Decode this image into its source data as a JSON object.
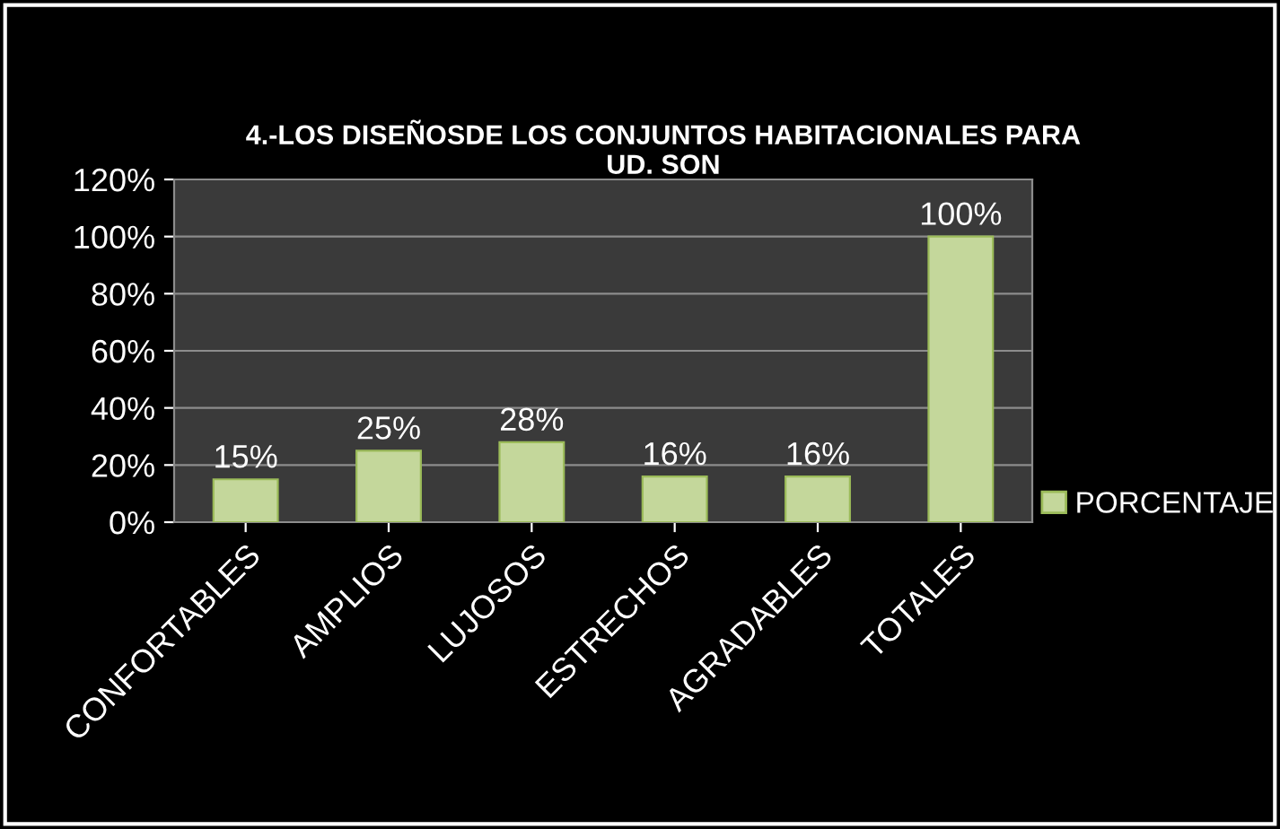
{
  "chart_data": {
    "type": "bar",
    "title": "4.-LOS DISEÑOSDE LOS CONJUNTOS HABITACIONALES PARA\nUD. SON",
    "categories": [
      "CONFORTABLES",
      "AMPLIOS",
      "LUJOSOS",
      "ESTRECHOS",
      "AGRADABLES",
      "TOTALES"
    ],
    "series": [
      {
        "name": "PORCENTAJE",
        "color": "#c4d79b",
        "values": [
          15,
          25,
          28,
          16,
          16,
          100
        ],
        "value_labels": [
          "15%",
          "25%",
          "28%",
          "16%",
          "16%",
          "100%"
        ]
      }
    ],
    "ylim": [
      0,
      120
    ],
    "yticks": [
      {
        "value": 0,
        "label": "0%"
      },
      {
        "value": 20,
        "label": "20%"
      },
      {
        "value": 40,
        "label": "40%"
      },
      {
        "value": 60,
        "label": "60%"
      },
      {
        "value": 80,
        "label": "80%"
      },
      {
        "value": 100,
        "label": "100%"
      },
      {
        "value": 120,
        "label": "120%"
      }
    ],
    "grid": "y",
    "legend": "right"
  }
}
